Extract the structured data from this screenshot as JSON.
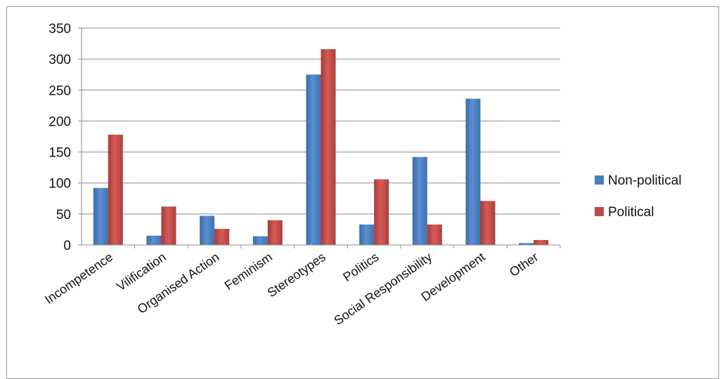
{
  "chart_data": {
    "type": "bar",
    "title": "",
    "xlabel": "",
    "ylabel": "",
    "categories": [
      "Incompetence",
      "Vilification",
      "Organised Action",
      "Feminism",
      "Stereotypes",
      "Politics",
      "Social Responsibility",
      "Development",
      "Other"
    ],
    "series": [
      {
        "name": "Non-political",
        "color": "#4a7ebb",
        "values": [
          92,
          15,
          47,
          14,
          275,
          33,
          142,
          236,
          3
        ]
      },
      {
        "name": "Political",
        "color": "#be4b48",
        "values": [
          178,
          62,
          26,
          40,
          316,
          106,
          33,
          71,
          8
        ]
      }
    ],
    "ylim": [
      0,
      350
    ],
    "yticks": [
      "0",
      "50",
      "100",
      "150",
      "200",
      "250",
      "300",
      "350"
    ],
    "grid": true,
    "legend_position": "right"
  }
}
